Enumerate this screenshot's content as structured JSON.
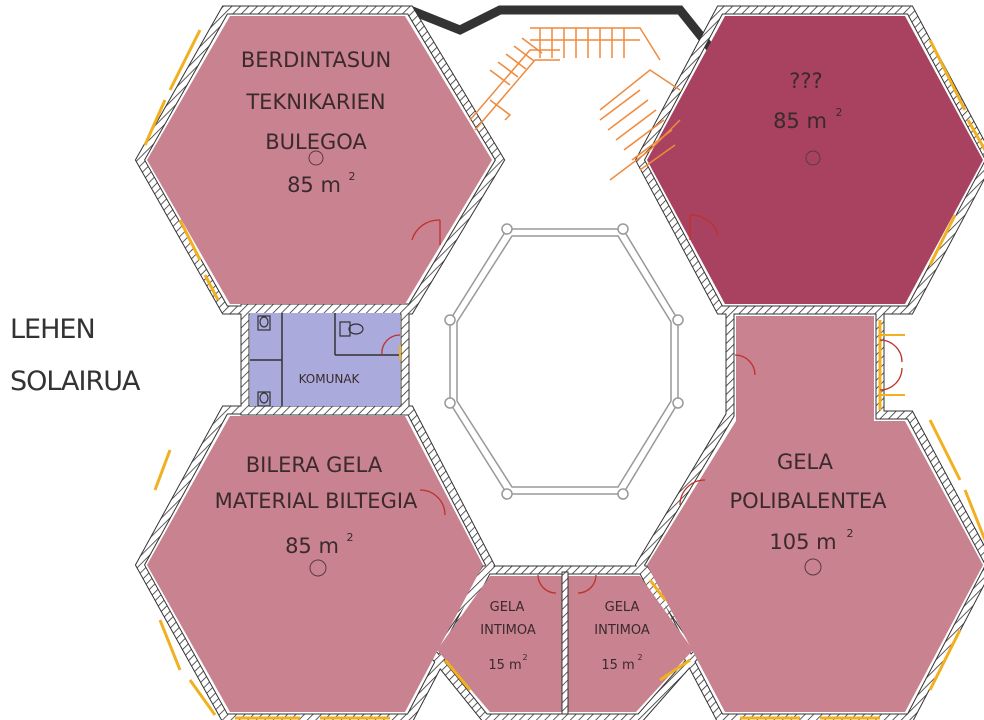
{
  "floor_label": {
    "line1": "LEHEN",
    "line2": "SOLAIRUA"
  },
  "colors": {
    "room_pink": "#c98290",
    "room_dark": "#a84260",
    "wc_blue": "#aaaadd",
    "wall": "#333333",
    "window": "#f0b020",
    "stair": "#f08a3c",
    "door_red": "#c0302a",
    "atrium_line": "#999999"
  },
  "rooms": {
    "tl": {
      "l1": "BERDINTASUN",
      "l2": "TEKNIKARIEN",
      "l3": "BULEGOA",
      "area": "85 m",
      "sup": "2"
    },
    "tr": {
      "l1": "???",
      "area": "85 m",
      "sup": "2"
    },
    "wc": {
      "l1": "KOMUNAK"
    },
    "bl": {
      "l1": "BILERA GELA",
      "l2": "MATERIAL BILTEGIA",
      "area": "85 m",
      "sup": "2"
    },
    "br": {
      "l1": "GELA",
      "l2": "POLIBALENTEA",
      "area": "105 m",
      "sup": "2"
    },
    "i1": {
      "l1": "GELA",
      "l2": "INTIMOA",
      "area": "15 m",
      "sup": "2"
    },
    "i2": {
      "l1": "GELA",
      "l2": "INTIMOA",
      "area": "15 m",
      "sup": "2"
    }
  },
  "icons": [
    "toilet-icon",
    "stair-icon",
    "door-icon",
    "light-fixture-icon"
  ]
}
